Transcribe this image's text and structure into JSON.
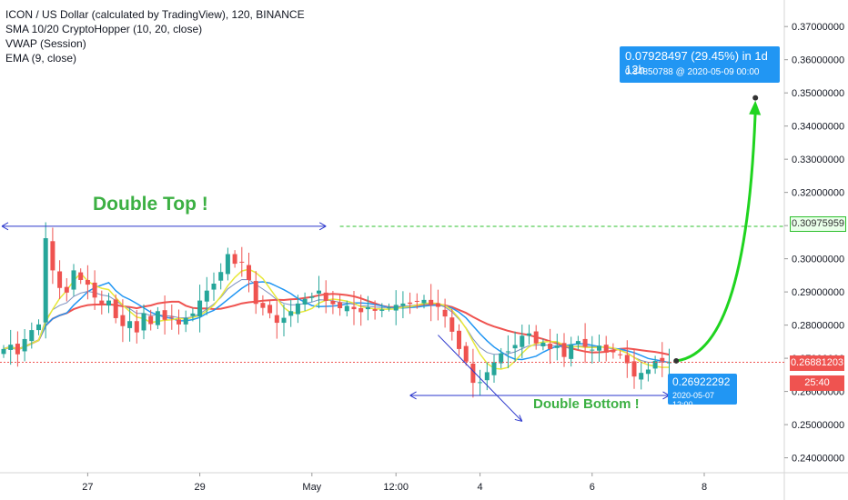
{
  "legend": {
    "title": "ICON / US Dollar (calculated by TradingView), 120, BINANCE",
    "ind1": "SMA 10/20 CryptoHopper (10, 20, close)",
    "ind2": "VWAP (Session)",
    "ind3": "EMA (9, close)"
  },
  "annotations": {
    "double_top": "Double Top !",
    "double_bottom": "Double Bottom !",
    "target": "0.07928497 (29.45%) in 1d 12h",
    "target_sub": "0.34850788 @ 2020-05-09  00:00",
    "low": "0.26922292",
    "low_sub": "2020-05-07 12:00"
  },
  "price_tags": {
    "resistance": "0.30975959",
    "current": "0.26881203",
    "countdown": "25:40"
  },
  "colors": {
    "up": "#26a69a",
    "down": "#ef5350",
    "sma10": "#2196f3",
    "sma20": "#ef5350",
    "vwap": "#e8e83a",
    "ema": "#7b8fbf",
    "projection": "#1fd41f",
    "annotation_line": "#2a36cc"
  },
  "chart_data": {
    "type": "candlestick",
    "title": "ICON / US Dollar (calculated by TradingView), 120, BINANCE",
    "ylim": [
      0.2355,
      0.378
    ],
    "y_ticks": [
      "0.37000000",
      "0.36000000",
      "0.35000000",
      "0.34000000",
      "0.33000000",
      "0.32000000",
      "0.31000000",
      "0.30000000",
      "0.29000000",
      "0.28000000",
      "0.27000000",
      "0.26000000",
      "0.25000000",
      "0.24000000"
    ],
    "y_tick_values": [
      0.37,
      0.36,
      0.35,
      0.34,
      0.33,
      0.32,
      0.31,
      0.3,
      0.29,
      0.28,
      0.27,
      0.26,
      0.25,
      0.24
    ],
    "x_ticks": [
      "27",
      "29",
      "May",
      "12:00",
      "4",
      "6",
      "8"
    ],
    "x_tick_bars": [
      12,
      28,
      44,
      56,
      68,
      84,
      100
    ],
    "bars_shown": 96,
    "bars_total": 108,
    "close": [
      0.2728,
      0.2741,
      0.2712,
      0.2758,
      0.2785,
      0.2802,
      0.3062,
      0.2965,
      0.2912,
      0.2898,
      0.2965,
      0.2936,
      0.2922,
      0.2883,
      0.2862,
      0.2874,
      0.2821,
      0.2797,
      0.2812,
      0.2778,
      0.2836,
      0.2803,
      0.2842,
      0.2816,
      0.2823,
      0.2802,
      0.2821,
      0.2835,
      0.2874,
      0.2904,
      0.2925,
      0.296,
      0.3014,
      0.2985,
      0.299,
      0.2936,
      0.2864,
      0.2852,
      0.2836,
      0.2807,
      0.2822,
      0.2842,
      0.2865,
      0.2879,
      0.2886,
      0.2904,
      0.2873,
      0.2863,
      0.2851,
      0.2858,
      0.2848,
      0.2839,
      0.2854,
      0.2843,
      0.2847,
      0.2853,
      0.2861,
      0.2865,
      0.2864,
      0.2872,
      0.2876,
      0.286,
      0.2855,
      0.2826,
      0.278,
      0.2728,
      0.269,
      0.2626,
      0.2628,
      0.2658,
      0.2688,
      0.2715,
      0.2721,
      0.274,
      0.2768,
      0.2775,
      0.2745,
      0.2747,
      0.2728,
      0.2737,
      0.2704,
      0.2742,
      0.2752,
      0.2734,
      0.2726,
      0.2738,
      0.2717,
      0.2718,
      0.271,
      0.2685,
      0.2645,
      0.2656,
      0.2666,
      0.2692,
      0.2691,
      0.2688
    ],
    "projection": {
      "from_price": 0.26922292,
      "to_price": 0.34850788,
      "from_bar": 96,
      "to_bar": 106
    },
    "resistance": 0.30975959,
    "current": 0.26881203,
    "double_top_level": 0.3098,
    "double_bottom_level": 0.2588
  }
}
